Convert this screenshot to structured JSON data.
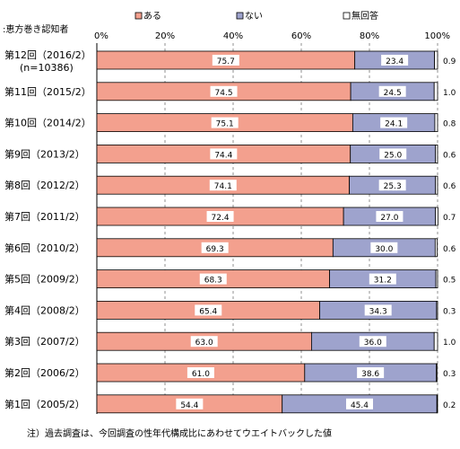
{
  "chart_data": {
    "type": "bar",
    "stacked": "100%",
    "orientation": "horizontal",
    "subject_label": ":恵方巻き認知者",
    "categories": [
      "第12回（2016/2）\n(n=10386)",
      "第11回（2015/2）",
      "第10回（2014/2）",
      "第9回（2013/2）",
      "第8回（2012/2）",
      "第7回（2011/2）",
      "第6回（2010/2）",
      "第5回（2009/2）",
      "第4回（2008/2）",
      "第3回（2007/2）",
      "第2回（2006/2）",
      "第1回（2005/2）"
    ],
    "series": [
      {
        "name": "ある",
        "color": "#f3a08e",
        "values": [
          75.7,
          74.5,
          75.1,
          74.4,
          74.1,
          72.4,
          69.3,
          68.3,
          65.4,
          63.0,
          61.0,
          54.4
        ]
      },
      {
        "name": "ない",
        "color": "#9ea3cd",
        "values": [
          23.4,
          24.5,
          24.1,
          25.0,
          25.3,
          27.0,
          30.0,
          31.2,
          34.3,
          36.0,
          38.6,
          45.4
        ]
      },
      {
        "name": "無回答",
        "color": "#ffffff",
        "values": [
          0.9,
          1.0,
          0.8,
          0.6,
          0.6,
          0.7,
          0.6,
          0.5,
          0.3,
          1.0,
          0.3,
          0.2
        ]
      }
    ],
    "x_ticks": [
      "0%",
      "20%",
      "40%",
      "60%",
      "80%",
      "100%"
    ],
    "xlim": [
      0,
      100
    ],
    "legend_position": "top",
    "grid": "vertical dashed",
    "footnote": "注）過去調査は、今回調査の性年代構成比にあわせてウエイトバックした値"
  }
}
